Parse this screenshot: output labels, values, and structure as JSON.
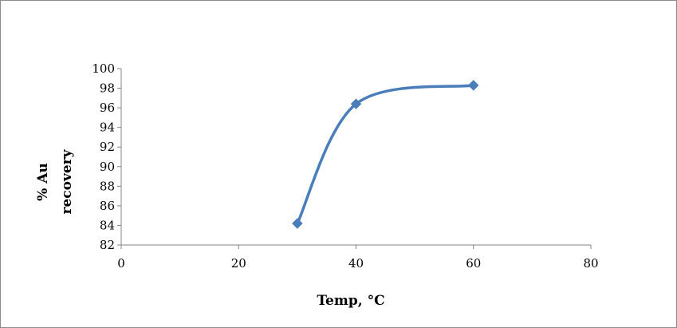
{
  "chart_data": {
    "type": "scatter",
    "title": "",
    "xlabel": "Temp, °C",
    "ylabel_lines": [
      "% Au",
      "recovery"
    ],
    "xlim": [
      0,
      80
    ],
    "ylim": [
      82,
      100
    ],
    "x_ticks": [
      0,
      20,
      40,
      60,
      80
    ],
    "y_ticks": [
      82,
      84,
      86,
      88,
      90,
      92,
      94,
      96,
      98,
      100
    ],
    "grid": false,
    "legend": "none",
    "smooth_line": true,
    "marker": "diamond",
    "series_color": "#4a7ebb",
    "series": [
      {
        "x": [
          30,
          40,
          60
        ],
        "y": [
          84.2,
          96.4,
          98.3
        ]
      }
    ]
  }
}
